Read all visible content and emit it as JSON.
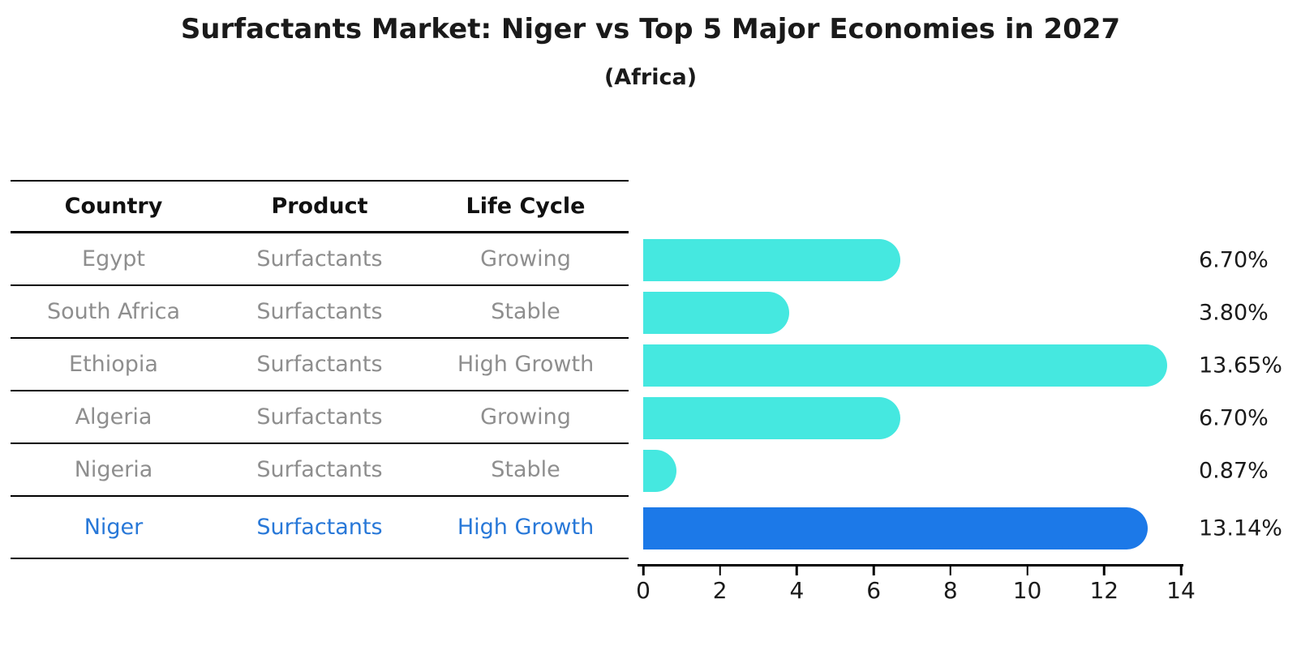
{
  "chart_data": {
    "type": "bar",
    "title": "Surfactants Market: Niger vs Top 5 Major Economies in 2027",
    "subtitle": "(Africa)",
    "table_headers": [
      "Country",
      "Product",
      "Life Cycle"
    ],
    "categories": [
      "Egypt",
      "South Africa",
      "Ethiopia",
      "Algeria",
      "Nigeria",
      "Niger"
    ],
    "rows": [
      {
        "country": "Egypt",
        "product": "Surfactants",
        "life_cycle": "Growing",
        "value": 6.7,
        "value_label": "6.70%",
        "highlight": false
      },
      {
        "country": "South Africa",
        "product": "Surfactants",
        "life_cycle": "Stable",
        "value": 3.8,
        "value_label": "3.80%",
        "highlight": false
      },
      {
        "country": "Ethiopia",
        "product": "Surfactants",
        "life_cycle": "High Growth",
        "value": 13.65,
        "value_label": "13.65%",
        "highlight": false
      },
      {
        "country": "Algeria",
        "product": "Surfactants",
        "life_cycle": "Growing",
        "value": 6.7,
        "value_label": "6.70%",
        "highlight": false
      },
      {
        "country": "Nigeria",
        "product": "Surfactants",
        "life_cycle": "Stable",
        "value": 0.87,
        "value_label": "0.87%",
        "highlight": false
      },
      {
        "country": "Niger",
        "product": "Surfactants",
        "life_cycle": "High Growth",
        "value": 13.14,
        "value_label": "13.14%",
        "highlight": true
      }
    ],
    "xlabel": "",
    "ylabel": "",
    "xlim": [
      0,
      14
    ],
    "x_ticks": [
      "0",
      "2",
      "4",
      "6",
      "8",
      "10",
      "12",
      "14"
    ],
    "grid": false,
    "legend": false,
    "colors": {
      "bar": "#45e8e0",
      "highlight_bar": "#1c79e8",
      "row_text": "#8e8e8e",
      "highlight_text": "#2878d8",
      "header_text": "#111111",
      "value_text": "#1a1a1a",
      "axis": "#000000"
    }
  }
}
